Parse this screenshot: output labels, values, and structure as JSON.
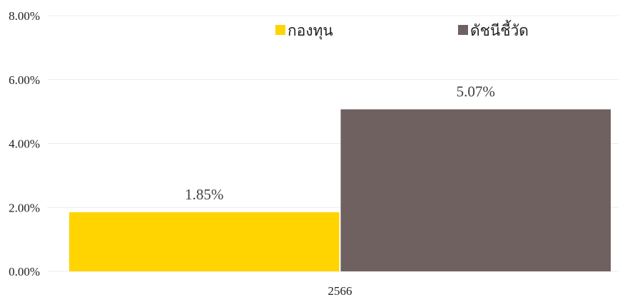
{
  "chart_data": {
    "type": "bar",
    "title": "",
    "xlabel": "",
    "ylabel": "",
    "categories": [
      "2566"
    ],
    "series": [
      {
        "name": "กองทุน",
        "values": [
          1.85
        ],
        "color": "#FFD400",
        "label": "1.85%"
      },
      {
        "name": "ดัชนีชี้วัด",
        "values": [
          5.07
        ],
        "color": "#6F6160",
        "label": "5.07%"
      }
    ],
    "ylim": [
      0,
      8
    ],
    "yticks": [
      {
        "value": 0,
        "label": "0.00%"
      },
      {
        "value": 2,
        "label": "2.00%"
      },
      {
        "value": 4,
        "label": "4.00%"
      },
      {
        "value": 6,
        "label": "6.00%"
      },
      {
        "value": 8,
        "label": "8.00%"
      }
    ],
    "grid": true,
    "legend_position": "top"
  }
}
